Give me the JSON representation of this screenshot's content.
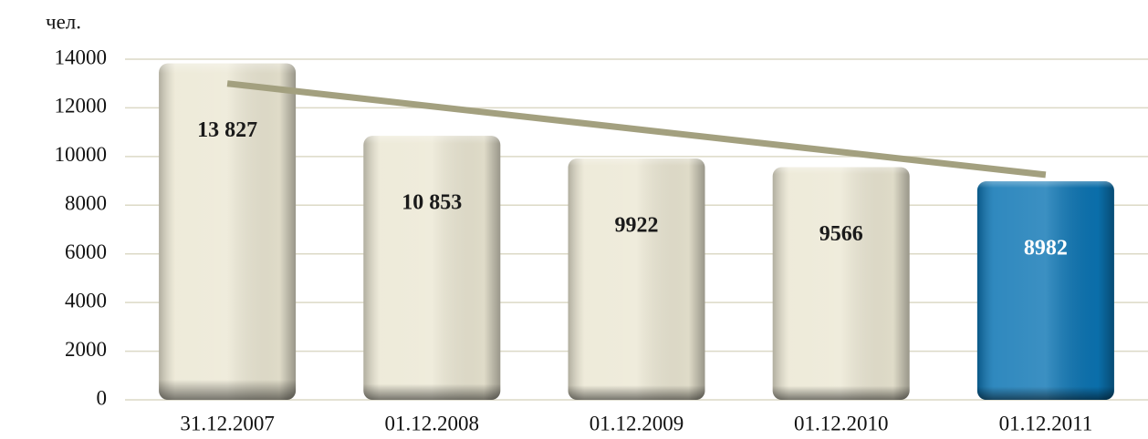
{
  "chart_data": {
    "type": "bar",
    "y_unit_label": "чел.",
    "categories": [
      "31.12.2007",
      "01.12.2008",
      "01.12.2009",
      "01.12.2010",
      "01.12.2011"
    ],
    "values": [
      13827,
      10853,
      9922,
      9566,
      8982
    ],
    "value_labels": [
      "13 827",
      "10 853",
      "9922",
      "9566",
      "8982"
    ],
    "colors": [
      "#ebe7d3",
      "#ebe7d3",
      "#ebe7d3",
      "#ebe7d3",
      "#0b74b3"
    ],
    "label_colors": [
      "#1a1a1a",
      "#1a1a1a",
      "#1a1a1a",
      "#1a1a1a",
      "#ffffff"
    ],
    "trendline": {
      "color": "#a3a07f",
      "values": [
        13000,
        9250
      ]
    },
    "ylim": [
      0,
      14000
    ],
    "yticks": [
      0,
      2000,
      4000,
      6000,
      8000,
      10000,
      12000,
      14000
    ],
    "grid": true
  }
}
